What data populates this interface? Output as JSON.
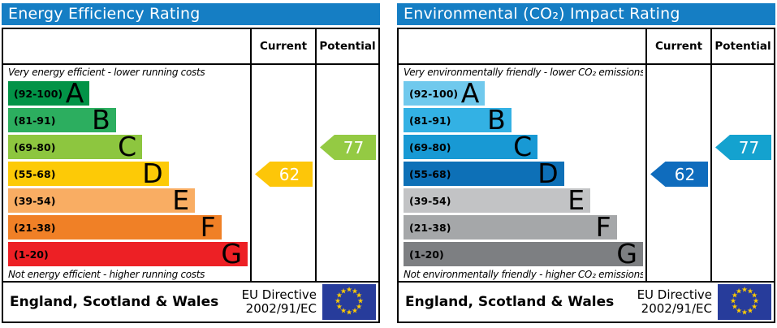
{
  "page": {
    "background": "#ffffff"
  },
  "eu_flag": {
    "background": "#273c9b",
    "star_color": "#ffcc00",
    "star_count": 12
  },
  "panels": [
    {
      "title": "Energy Efficiency Rating",
      "header_color": "#157ec4",
      "columns": {
        "current": "Current",
        "potential": "Potential"
      },
      "top_note": "Very energy efficient - lower running costs",
      "bottom_note": "Not energy efficient - higher running costs",
      "bands": [
        {
          "label": "A",
          "range": "(92-100)",
          "color": "#029347",
          "width_pct": 34
        },
        {
          "label": "B",
          "range": "(81-91)",
          "color": "#2cae5f",
          "width_pct": 45
        },
        {
          "label": "C",
          "range": "(69-80)",
          "color": "#8dc63f",
          "width_pct": 56
        },
        {
          "label": "D",
          "range": "(55-68)",
          "color": "#fdca06",
          "width_pct": 67
        },
        {
          "label": "E",
          "range": "(39-54)",
          "color": "#f9ad63",
          "width_pct": 78
        },
        {
          "label": "F",
          "range": "(21-38)",
          "color": "#f08026",
          "width_pct": 89
        },
        {
          "label": "G",
          "range": "(1-20)",
          "color": "#ed2025",
          "width_pct": 100
        }
      ],
      "current": {
        "value": "62",
        "color": "#fdc609"
      },
      "potential": {
        "value": "77",
        "color": "#94ca43"
      },
      "footer": {
        "region": "England, Scotland & Wales",
        "directive_line1": "EU Directive",
        "directive_line2": "2002/91/EC"
      }
    },
    {
      "title": "Environmental (CO₂) Impact Rating",
      "header_color": "#157ec4",
      "columns": {
        "current": "Current",
        "potential": "Potential"
      },
      "top_note": "Very environmentally friendly - lower CO₂ emissions",
      "bottom_note": "Not environmentally friendly - higher CO₂ emissions",
      "bands": [
        {
          "label": "A",
          "range": "(92-100)",
          "color": "#70c9ed",
          "width_pct": 34
        },
        {
          "label": "B",
          "range": "(81-91)",
          "color": "#33b1e4",
          "width_pct": 45
        },
        {
          "label": "C",
          "range": "(69-80)",
          "color": "#1899d4",
          "width_pct": 56
        },
        {
          "label": "D",
          "range": "(55-68)",
          "color": "#0d70b7",
          "width_pct": 67
        },
        {
          "label": "E",
          "range": "(39-54)",
          "color": "#c2c3c5",
          "width_pct": 78
        },
        {
          "label": "F",
          "range": "(21-38)",
          "color": "#a5a7a9",
          "width_pct": 89
        },
        {
          "label": "G",
          "range": "(1-20)",
          "color": "#7d7f82",
          "width_pct": 100
        }
      ],
      "current": {
        "value": "62",
        "color": "#0f6cbd"
      },
      "potential": {
        "value": "77",
        "color": "#14a2cf"
      },
      "footer": {
        "region": "England, Scotland & Wales",
        "directive_line1": "EU Directive",
        "directive_line2": "2002/91/EC"
      }
    }
  ],
  "chart_data": [
    {
      "type": "bar",
      "orientation": "horizontal",
      "title": "Energy Efficiency Rating",
      "categories": [
        "A",
        "B",
        "C",
        "D",
        "E",
        "F",
        "G"
      ],
      "band_ranges": [
        "92-100",
        "81-91",
        "69-80",
        "55-68",
        "39-54",
        "21-38",
        "1-20"
      ],
      "band_relative_widths_pct": [
        34,
        45,
        56,
        67,
        78,
        89,
        100
      ],
      "band_colors": [
        "#029347",
        "#2cae5f",
        "#8dc63f",
        "#fdca06",
        "#f9ad63",
        "#f08026",
        "#ed2025"
      ],
      "scale": [
        1,
        100
      ],
      "columns": [
        "Current",
        "Potential"
      ],
      "current": 62,
      "current_band": "D",
      "potential": 77,
      "potential_band": "C",
      "top_annotation": "Very energy efficient - lower running costs",
      "bottom_annotation": "Not energy efficient - higher running costs",
      "footer_region": "England, Scotland & Wales",
      "footer_directive": "EU Directive 2002/91/EC"
    },
    {
      "type": "bar",
      "orientation": "horizontal",
      "title": "Environmental (CO₂) Impact Rating",
      "categories": [
        "A",
        "B",
        "C",
        "D",
        "E",
        "F",
        "G"
      ],
      "band_ranges": [
        "92-100",
        "81-91",
        "69-80",
        "55-68",
        "39-54",
        "21-38",
        "1-20"
      ],
      "band_relative_widths_pct": [
        34,
        45,
        56,
        67,
        78,
        89,
        100
      ],
      "band_colors": [
        "#70c9ed",
        "#33b1e4",
        "#1899d4",
        "#0d70b7",
        "#c2c3c5",
        "#a5a7a9",
        "#7d7f82"
      ],
      "scale": [
        1,
        100
      ],
      "columns": [
        "Current",
        "Potential"
      ],
      "current": 62,
      "current_band": "D",
      "potential": 77,
      "potential_band": "C",
      "top_annotation": "Very environmentally friendly - lower CO₂ emissions",
      "bottom_annotation": "Not environmentally friendly - higher CO₂ emissions",
      "footer_region": "England, Scotland & Wales",
      "footer_directive": "EU Directive 2002/91/EC"
    }
  ]
}
